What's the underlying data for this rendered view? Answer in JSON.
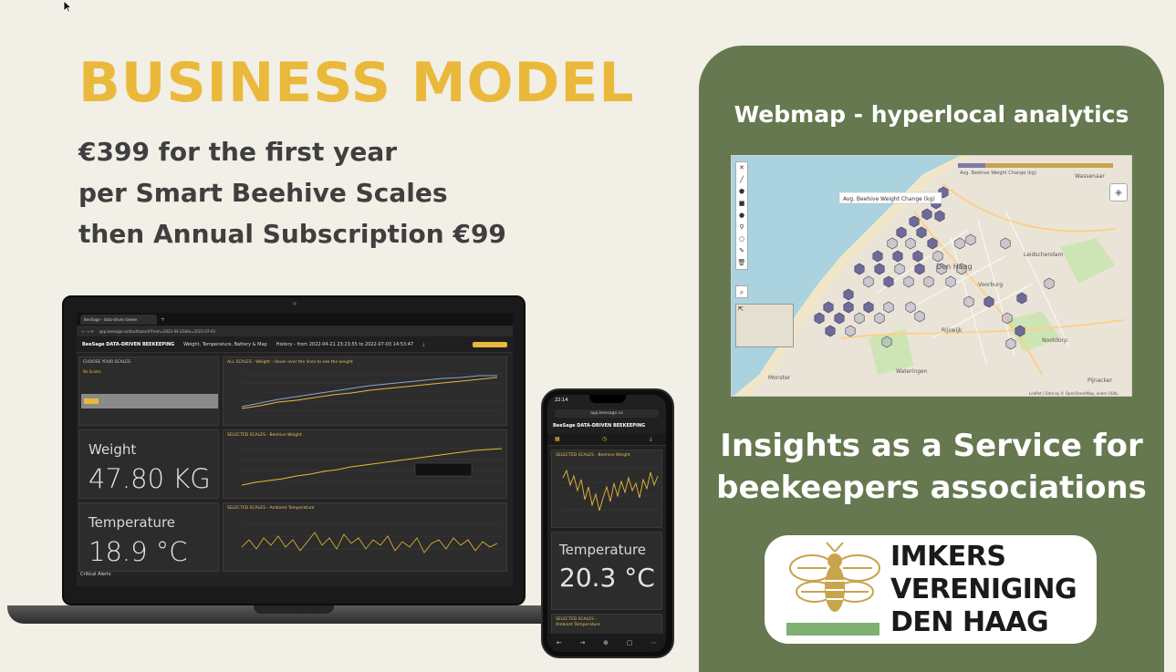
{
  "heading": "BUSINESS MODEL",
  "pricing": {
    "line1": "€399 for the first year",
    "line2": "per Smart Beehive Scales",
    "line3": "then Annual Subscription €99"
  },
  "laptop": {
    "tab_title": "BeeSage - data-driven beeke",
    "url": "app.beesage.co/dashboard/?from=2022-04-21&to=2022-07-03",
    "app_title": "BeeSage DATA-DRIVEN BEEKEEPING",
    "app_menu": "Weight, Temperature, Battery & Map",
    "history": "History - from 2022-04-21 23:23:55 to 2022-07-03 14:53:47",
    "choose_scales": "CHOOSE YOUR SCALES",
    "no_scales": "No Scales",
    "all_scales": "ALL SCALES - Weight - Hover over the lines to see the weight",
    "weight_panel": "SELECTED SCALES - Beehive Weight",
    "temp_panel": "SELECTED SCALES - Ambient Temperature",
    "weight_label": "Weight",
    "weight_value": "47.80 KG",
    "temp_label": "Temperature",
    "temp_value": "18.9 °C",
    "alerts": "Critical Alerts",
    "colors": {
      "accent": "#e8b93a",
      "bg": "#232323"
    }
  },
  "phone": {
    "time": "22:14",
    "url": "app.beesage.co",
    "app_title": "BeeSage DATA-DRIVEN BEEKEEPING",
    "weight_panel": "SELECTED SCALES - Beehive Weight",
    "temp_label": "Temperature",
    "temp_value": "20.3 °C",
    "temp_panel": "SELECTED SCALES - Ambient Temperature"
  },
  "panel": {
    "heading": "Webmap - hyperlocal analytics",
    "tooltip": "Avg. Beehive Weight Change (kg)",
    "legend_title": "Avg. Beehive Weight Change (kg)",
    "places": [
      "Den Haag",
      "Leidschendam",
      "Voorburg",
      "Rijswijk",
      "Nootdorp",
      "Wateringen",
      "Monster",
      "Pijnacker",
      "Wassenaar"
    ],
    "attribution": "Leaflet | Data by © OpenStreetMap, under ODbL",
    "insight_line1": "Insights as a Service for",
    "insight_line2": "beekeepers associations",
    "logo_lines": [
      "IMKERS",
      "VERENIGING",
      "DEN HAAG"
    ],
    "colors": {
      "panel": "#65784f",
      "title": "#eab93b",
      "hex": "#6e6a9a"
    }
  }
}
